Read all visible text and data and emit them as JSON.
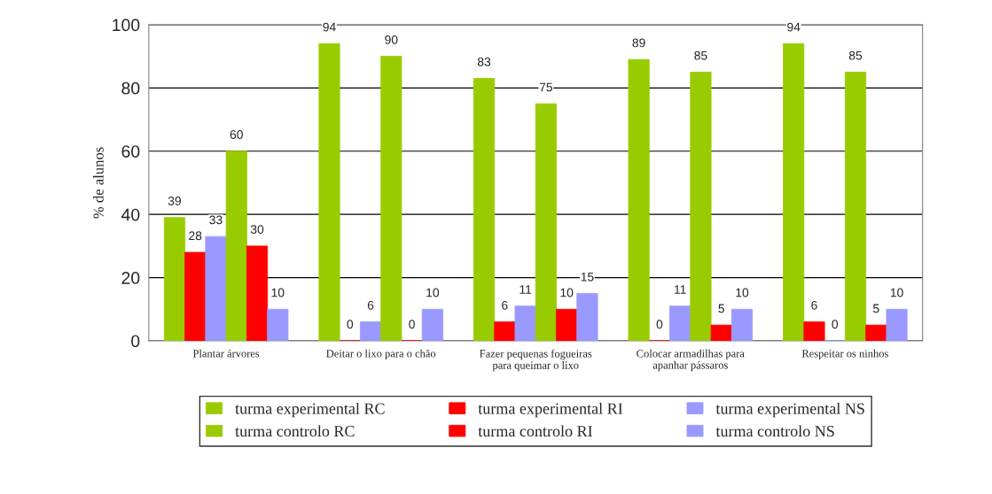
{
  "chart_data": {
    "type": "bar",
    "ylabel": "% de alunos",
    "categories": [
      "Plantar árvores",
      "Deitar o lixo para o chão",
      "Fazer pequenas fogueiras\npara queimar o lixo",
      "Colocar armadilhas para\napanhar pássaros",
      "Respeitar os ninhos"
    ],
    "series": [
      {
        "name": "turma experimental RC",
        "color": "#99cc00",
        "values": [
          39,
          94,
          83,
          89,
          94
        ]
      },
      {
        "name": "turma experimental RI",
        "color": "#ff0000",
        "values": [
          28,
          0,
          6,
          0,
          6
        ]
      },
      {
        "name": "turma experimental NS",
        "color": "#9999ff",
        "values": [
          33,
          6,
          11,
          11,
          0
        ]
      },
      {
        "name": "turma controlo RC",
        "color": "#99cc00",
        "values": [
          60,
          90,
          75,
          85,
          85
        ]
      },
      {
        "name": "turma controlo RI",
        "color": "#ff0000",
        "values": [
          30,
          0,
          10,
          5,
          5
        ]
      },
      {
        "name": "turma controlo NS",
        "color": "#9999ff",
        "values": [
          10,
          10,
          15,
          10,
          10
        ]
      }
    ],
    "ylim": [
      0,
      100
    ],
    "yticks": [
      0,
      20,
      40,
      60,
      80,
      100
    ],
    "grid": "y",
    "legend": "bottom",
    "data_labels": true
  }
}
